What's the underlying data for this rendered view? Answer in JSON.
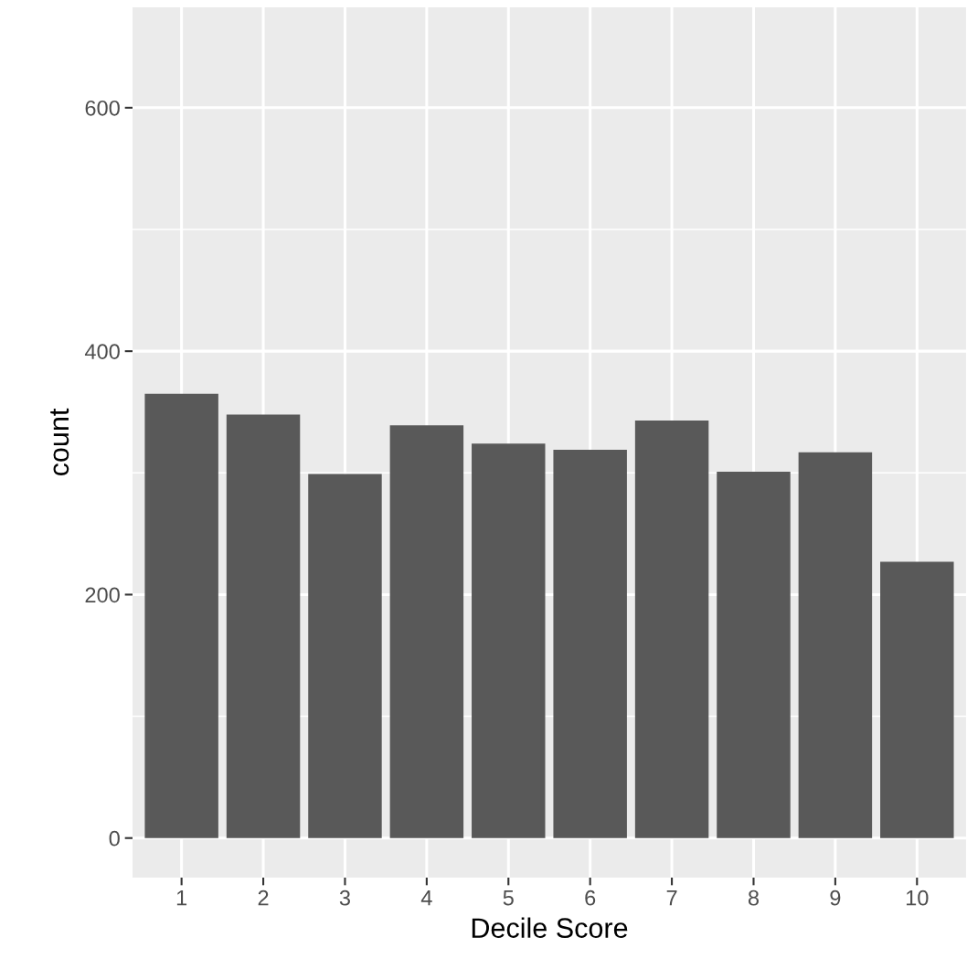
{
  "chart_data": {
    "type": "bar",
    "xlabel": "Decile Score",
    "ylabel": "count",
    "categories": [
      "1",
      "2",
      "3",
      "4",
      "5",
      "6",
      "7",
      "8",
      "9",
      "10"
    ],
    "values": [
      365,
      348,
      299,
      339,
      324,
      319,
      343,
      301,
      317,
      227
    ],
    "color": "#595959",
    "ylim": [
      -32.5,
      682.5
    ],
    "yticks": [
      0,
      200,
      400,
      600
    ],
    "grid": true,
    "legend": false
  }
}
